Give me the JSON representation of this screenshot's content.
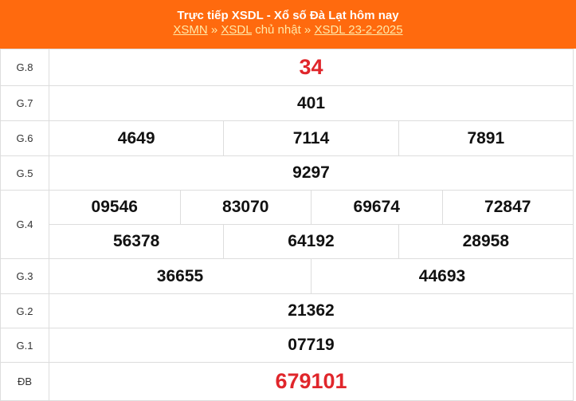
{
  "header": {
    "title": "Trực tiếp XSDL - Xổ số Đà Lạt hôm nay",
    "links": [
      "XSMN",
      "XSDL",
      "XSDL 23-2-2025"
    ],
    "sep": " » ",
    "mid_text": " chủ nhật",
    "color": "#ff6a0e"
  },
  "rows": [
    {
      "label": "G.8",
      "values": [
        "34"
      ]
    },
    {
      "label": "G.7",
      "values": [
        "401"
      ]
    },
    {
      "label": "G.6",
      "values": [
        "4649",
        "7114",
        "7891"
      ]
    },
    {
      "label": "G.5",
      "values": [
        "9297"
      ]
    },
    {
      "label": "G.4",
      "values": [
        "09546",
        "83070",
        "69674",
        "72847",
        "56378",
        "64192",
        "28958"
      ]
    },
    {
      "label": "G.3",
      "values": [
        "36655",
        "44693"
      ]
    },
    {
      "label": "G.2",
      "values": [
        "21362"
      ]
    },
    {
      "label": "G.1",
      "values": [
        "07719"
      ]
    },
    {
      "label": "ĐB",
      "values": [
        "679101"
      ]
    }
  ],
  "highlight_color": "#e0262b"
}
